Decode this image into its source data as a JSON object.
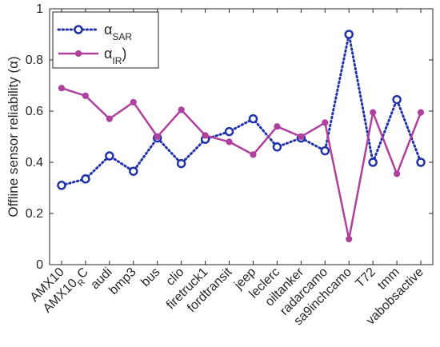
{
  "chart_data": {
    "type": "line",
    "categories": [
      "AMX10",
      "AMX10_R_C",
      "audi",
      "bmp3",
      "bus",
      "clio",
      "firetruck1",
      "fordtransit",
      "jeep",
      "leclerc",
      "oiltanker",
      "radarcamo",
      "sa9inchcamo",
      "T72",
      "tmm",
      "vabobsactive"
    ],
    "category_labels": [
      {
        "main": "AMX10",
        "sub": "",
        "tail": ""
      },
      {
        "main": "AMX10",
        "sub": "R",
        "tail": "C"
      },
      {
        "main": "audi",
        "sub": "",
        "tail": ""
      },
      {
        "main": "bmp3",
        "sub": "",
        "tail": ""
      },
      {
        "main": "bus",
        "sub": "",
        "tail": ""
      },
      {
        "main": "clio",
        "sub": "",
        "tail": ""
      },
      {
        "main": "firetruck1",
        "sub": "",
        "tail": ""
      },
      {
        "main": "fordtransit",
        "sub": "",
        "tail": ""
      },
      {
        "main": "jeep",
        "sub": "",
        "tail": ""
      },
      {
        "main": "leclerc",
        "sub": "",
        "tail": ""
      },
      {
        "main": "oiltanker",
        "sub": "",
        "tail": ""
      },
      {
        "main": "radarcamo",
        "sub": "",
        "tail": ""
      },
      {
        "main": "sa9inchcamo",
        "sub": "",
        "tail": ""
      },
      {
        "main": "T72",
        "sub": "",
        "tail": ""
      },
      {
        "main": "tmm",
        "sub": "",
        "tail": ""
      },
      {
        "main": "vabobsactive",
        "sub": "",
        "tail": ""
      }
    ],
    "series": [
      {
        "name": "α_SAR",
        "legend_main": "α",
        "legend_sub": "SAR",
        "legend_tail": "",
        "color": "#2233a8",
        "line_style": "dotted",
        "marker": "circle-open",
        "values": [
          0.31,
          0.335,
          0.425,
          0.365,
          0.495,
          0.395,
          0.49,
          0.52,
          0.57,
          0.46,
          0.495,
          0.445,
          0.9,
          0.4,
          0.645,
          0.4
        ]
      },
      {
        "name": "α_IR)",
        "legend_main": "α",
        "legend_sub": "IR",
        "legend_tail": ")",
        "color": "#b0409e",
        "line_style": "solid",
        "marker": "dot-filled",
        "values": [
          0.69,
          0.66,
          0.57,
          0.635,
          0.5,
          0.605,
          0.505,
          0.48,
          0.43,
          0.54,
          0.5,
          0.555,
          0.1,
          0.595,
          0.355,
          0.595
        ]
      }
    ],
    "ylabel": "Offline sensor reliability (α)",
    "xlabel": "",
    "title": "",
    "ylim": [
      0,
      1
    ],
    "yticks": [
      0,
      0.2,
      0.4,
      0.6,
      0.8,
      1
    ],
    "ytick_labels": [
      "0",
      "0.2",
      "0.4",
      "0.6",
      "0.8",
      "1"
    ],
    "grid": false,
    "legend_position": "top-left"
  }
}
